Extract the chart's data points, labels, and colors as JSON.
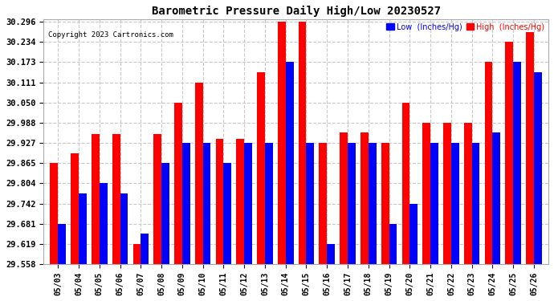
{
  "title": "Barometric Pressure Daily High/Low 20230527",
  "copyright": "Copyright 2023 Cartronics.com",
  "legend_low": "Low  (Inches/Hg)",
  "legend_high": "High  (Inches/Hg)",
  "dates": [
    "05/03",
    "05/04",
    "05/05",
    "05/06",
    "05/07",
    "05/08",
    "05/09",
    "05/10",
    "05/11",
    "05/12",
    "05/13",
    "05/14",
    "05/15",
    "05/16",
    "05/17",
    "05/18",
    "05/19",
    "05/20",
    "05/21",
    "05/22",
    "05/23",
    "05/24",
    "05/25",
    "05/26"
  ],
  "high_values": [
    29.865,
    29.896,
    29.953,
    29.953,
    29.62,
    29.953,
    30.05,
    30.111,
    29.94,
    29.94,
    30.142,
    30.296,
    30.296,
    29.927,
    29.958,
    29.958,
    29.927,
    30.05,
    29.988,
    29.988,
    29.988,
    30.173,
    30.234,
    30.265
  ],
  "low_values": [
    29.681,
    29.773,
    29.804,
    29.773,
    29.65,
    29.865,
    29.927,
    29.927,
    29.865,
    29.927,
    29.927,
    30.173,
    29.927,
    29.62,
    29.927,
    29.927,
    29.681,
    29.742,
    29.927,
    29.927,
    29.927,
    29.958,
    30.173,
    30.142
  ],
  "ylim_min": 29.558,
  "ylim_max": 30.296,
  "yticks": [
    29.558,
    29.619,
    29.681,
    29.742,
    29.804,
    29.865,
    29.927,
    29.988,
    30.05,
    30.111,
    30.173,
    30.234,
    30.296
  ],
  "color_high": "#ff0000",
  "color_low": "#0000ff",
  "bg_color": "#ffffff",
  "grid_color": "#c8c8c8",
  "title_color": "#000000",
  "copyright_color": "#000000",
  "legend_low_color": "#0000ff",
  "legend_high_color": "#ff0000"
}
